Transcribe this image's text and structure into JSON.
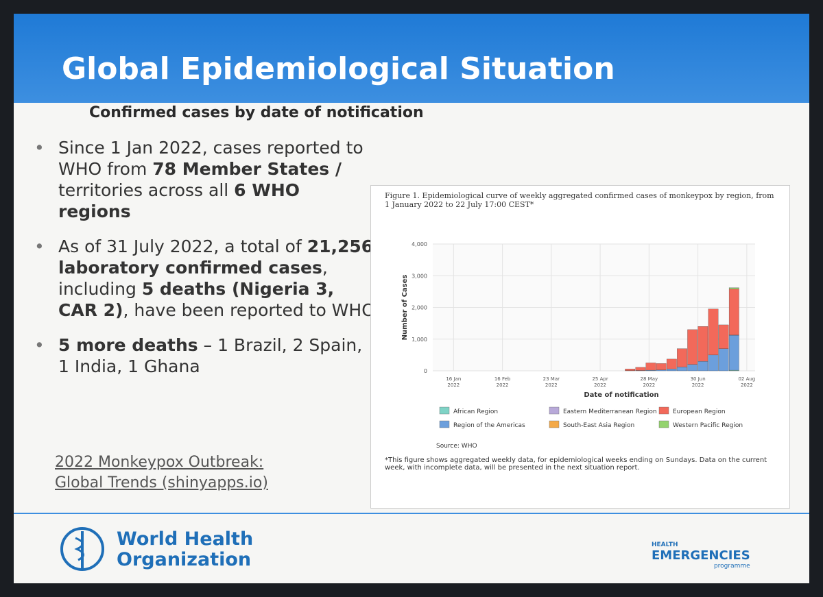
{
  "header": {
    "title": "Global Epidemiological Situation",
    "subtitle": "Confirmed cases by date of notification"
  },
  "bullets": [
    [
      {
        "t": "Since 1 Jan 2022, cases reported to WHO from ",
        "b": false
      },
      {
        "t": "78 Member States / ",
        "b": true
      },
      {
        "t": "territories across all ",
        "b": false
      },
      {
        "t": "6 WHO regions",
        "b": true
      }
    ],
    [
      {
        "t": "As of 31 July 2022, a total of ",
        "b": false
      },
      {
        "t": "21,256 laboratory confirmed cases",
        "b": true
      },
      {
        "t": ", including ",
        "b": false
      },
      {
        "t": "5 deaths (Nigeria 3, CAR 2)",
        "b": true
      },
      {
        "t": ", have been reported to WHO",
        "b": false
      }
    ],
    [
      {
        "t": "5 more deaths",
        "b": true
      },
      {
        "t": " – 1 Brazil, 2 Spain, 1 India, 1 Ghana",
        "b": false
      }
    ]
  ],
  "link": "2022 Monkeypox Outbreak: Global Trends (shinyapps.io)",
  "footer": {
    "org_line1": "World Health",
    "org_line2": "Organization",
    "program_line1": "HEALTH",
    "program_line2": "EMERGENCIES",
    "program_line3": "programme"
  },
  "chart_data": {
    "type": "stacked_bar",
    "title": "Figure 1. Epidemiological curve of weekly aggregated confirmed cases of monkeypox by region, from 1 January 2022 to 22 July 17:00 CEST*",
    "ylabel": "Number of Cases",
    "xlabel": "Date of notification",
    "categories": [
      null,
      null,
      null,
      null,
      null,
      null,
      null,
      null,
      null,
      null,
      null,
      null,
      null,
      null,
      null,
      null,
      null,
      null,
      null,
      null,
      null,
      null,
      null,
      null,
      null,
      null,
      null,
      null,
      null
    ],
    "xtick_labels": [
      [
        "16 Jan",
        "2022"
      ],
      [
        "16 Feb",
        "2022"
      ],
      [
        "23 Mar",
        "2022"
      ],
      [
        "25 Apr",
        "2022"
      ],
      [
        "28 May",
        "2022"
      ],
      [
        "30 Jun",
        "2022"
      ],
      [
        "02 Aug",
        "2022"
      ]
    ],
    "ylim": [
      0,
      4000
    ],
    "yticks": [
      0,
      {
        "value": 1000,
        "label": "1,000"
      },
      {
        "value": 2000,
        "label": "2,000"
      },
      {
        "value": 3000,
        "label": "3,000"
      },
      {
        "value": 4000,
        "label": "4,000"
      }
    ],
    "grid": true,
    "series": [
      {
        "name": "African Region",
        "color": "#7fd3c6",
        "values": [
          0,
          0,
          0,
          0,
          0,
          0,
          0,
          0,
          0,
          0,
          0,
          0,
          0,
          0,
          0,
          0,
          0,
          0,
          0,
          0,
          0,
          0,
          0,
          0,
          0,
          0,
          0,
          0,
          20
        ]
      },
      {
        "name": "Region of the Americas",
        "color": "#6c9fdc",
        "values": [
          0,
          0,
          0,
          0,
          0,
          0,
          0,
          0,
          0,
          0,
          0,
          0,
          0,
          0,
          0,
          0,
          0,
          0,
          5,
          10,
          20,
          30,
          60,
          120,
          200,
          300,
          500,
          700,
          1100
        ]
      },
      {
        "name": "Eastern Mediterranean Region",
        "color": "#b8a9d9",
        "values": [
          0,
          0,
          0,
          0,
          0,
          0,
          0,
          0,
          0,
          0,
          0,
          0,
          0,
          0,
          0,
          0,
          0,
          0,
          0,
          0,
          0,
          0,
          0,
          0,
          0,
          0,
          0,
          0,
          10
        ]
      },
      {
        "name": "European Region",
        "color": "#f2695a",
        "values": [
          0,
          0,
          0,
          0,
          0,
          0,
          0,
          0,
          0,
          0,
          0,
          0,
          0,
          0,
          0,
          0,
          0,
          0,
          55,
          100,
          230,
          200,
          310,
          580,
          1100,
          1100,
          1450,
          750,
          1450
        ]
      },
      {
        "name": "South-East Asia Region",
        "color": "#f4a947",
        "values": [
          0,
          0,
          0,
          0,
          0,
          0,
          0,
          0,
          0,
          0,
          0,
          0,
          0,
          0,
          0,
          0,
          0,
          0,
          0,
          0,
          0,
          0,
          0,
          0,
          0,
          0,
          0,
          0,
          0
        ]
      },
      {
        "name": "Western Pacific Region",
        "color": "#94d36e",
        "values": [
          0,
          0,
          0,
          0,
          0,
          0,
          0,
          0,
          0,
          0,
          0,
          0,
          0,
          0,
          0,
          0,
          0,
          0,
          0,
          0,
          0,
          0,
          0,
          0,
          0,
          0,
          0,
          0,
          40
        ]
      }
    ],
    "source": "Source: WHO",
    "footnote": "*This figure shows aggregated weekly data, for epidemiological weeks ending on Sundays. Data on the current week, with incomplete data, will be presented in the next situation report."
  }
}
